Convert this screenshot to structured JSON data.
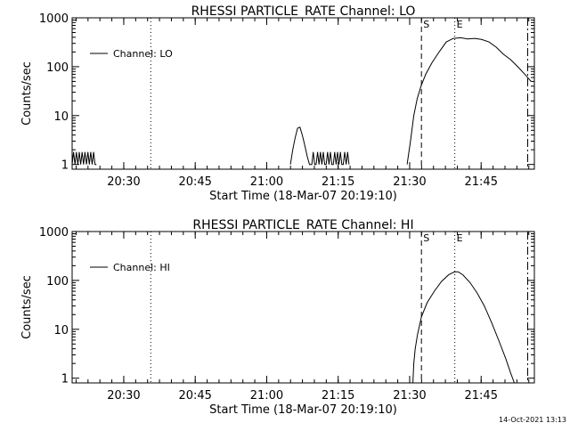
{
  "footer_timestamp": "14-Oct-2021 13:13",
  "chart_data": [
    {
      "type": "line",
      "title": "RHESSI PARTICLE_RATE Channel: LO",
      "xlabel": "Start Time (18-Mar-07 20:19:10)",
      "ylabel": "Counts/sec",
      "y_scale": "log",
      "ylim": [
        0.8,
        1000
      ],
      "x_unit": "minutes after 20:19:10",
      "xlim": [
        0,
        97
      ],
      "x_tick_labels": [
        "20:30",
        "20:45",
        "21:00",
        "21:15",
        "21:30",
        "21:45"
      ],
      "x_tick_values": [
        10.83,
        25.83,
        40.83,
        55.83,
        70.83,
        85.83
      ],
      "y_tick_labels": [
        "1",
        "10",
        "100",
        "1000"
      ],
      "y_tick_values": [
        1,
        10,
        100,
        1000
      ],
      "legend": {
        "label": "Channel: LO",
        "placement": "top-left"
      },
      "markers": [
        {
          "label": "",
          "style": "dotted",
          "x": 16.5
        },
        {
          "label": "S",
          "style": "dashed",
          "x": 73.3
        },
        {
          "label": "E",
          "style": "dotted",
          "x": 80.3
        },
        {
          "label": "",
          "style": "dashdot",
          "x": 95.6
        }
      ],
      "series": [
        {
          "name": "Channel: LO",
          "x": [
            0.0,
            0.3,
            0.6,
            0.9,
            1.2,
            1.5,
            1.8,
            2.1,
            2.4,
            2.7,
            3.0,
            3.3,
            3.6,
            3.9,
            4.2,
            4.5,
            4.8,
            5.1,
            45.8,
            46.3,
            46.8,
            47.3,
            47.8,
            48.3,
            48.8,
            49.3,
            49.8,
            50.3,
            50.6,
            50.9,
            51.2,
            51.5,
            51.8,
            52.1,
            52.4,
            52.7,
            53.0,
            53.3,
            53.6,
            53.9,
            54.2,
            54.5,
            54.8,
            55.1,
            55.4,
            55.7,
            56.0,
            56.3,
            56.6,
            56.9,
            57.2,
            57.5,
            57.8,
            58.1,
            70.3,
            71.0,
            71.7,
            72.4,
            73.2,
            74.2,
            75.5,
            77.0,
            78.5,
            80.0,
            81.5,
            83.0,
            84.5,
            86.0,
            87.5,
            89.0,
            90.5,
            92.0,
            93.5,
            95.0,
            96.3
          ],
          "values": [
            1,
            1.8,
            1,
            1.8,
            1,
            1.8,
            1,
            1.8,
            1,
            1.8,
            1,
            1.8,
            1,
            1.8,
            1,
            1.8,
            1,
            1,
            1,
            2,
            3.5,
            5.5,
            5.8,
            4,
            2.5,
            1.5,
            1,
            1,
            1.8,
            1,
            1,
            1.8,
            1,
            1.8,
            1,
            1.8,
            1,
            1,
            1.8,
            1,
            1.8,
            1,
            1,
            1.8,
            1,
            1.8,
            1,
            1.8,
            1,
            1,
            1.8,
            1,
            1.8,
            1,
            1,
            3,
            10,
            22,
            40,
            70,
            120,
            200,
            320,
            380,
            390,
            370,
            380,
            360,
            320,
            250,
            180,
            140,
            100,
            70,
            50
          ]
        }
      ]
    },
    {
      "type": "line",
      "title": "RHESSI PARTICLE_RATE Channel: HI",
      "xlabel": "Start Time (18-Mar-07 20:19:10)",
      "ylabel": "Counts/sec",
      "y_scale": "log",
      "ylim": [
        0.8,
        1000
      ],
      "x_unit": "minutes after 20:19:10",
      "xlim": [
        0,
        97
      ],
      "x_tick_labels": [
        "20:30",
        "20:45",
        "21:00",
        "21:15",
        "21:30",
        "21:45"
      ],
      "x_tick_values": [
        10.83,
        25.83,
        40.83,
        55.83,
        70.83,
        85.83
      ],
      "y_tick_labels": [
        "1",
        "10",
        "100",
        "1000"
      ],
      "y_tick_values": [
        1,
        10,
        100,
        1000
      ],
      "legend": {
        "label": "Channel: HI",
        "placement": "top-left"
      },
      "markers": [
        {
          "label": "",
          "style": "dotted",
          "x": 16.5
        },
        {
          "label": "S",
          "style": "dashed",
          "x": 73.3
        },
        {
          "label": "E",
          "style": "dotted",
          "x": 80.3
        },
        {
          "label": "",
          "style": "dashdot",
          "x": 95.6
        }
      ],
      "series": [
        {
          "name": "Channel: HI",
          "x": [
            71.5,
            71.7,
            72.0,
            72.5,
            73.3,
            74.5,
            76.0,
            77.5,
            79.0,
            80.3,
            81.0,
            82.0,
            83.5,
            85.0,
            86.5,
            88.0,
            89.5,
            91.0,
            92.0,
            92.8
          ],
          "values": [
            0.8,
            2,
            4,
            8,
            18,
            35,
            60,
            95,
            130,
            150,
            150,
            130,
            90,
            55,
            30,
            14,
            6,
            2.5,
            1.3,
            0.8
          ]
        }
      ]
    }
  ]
}
